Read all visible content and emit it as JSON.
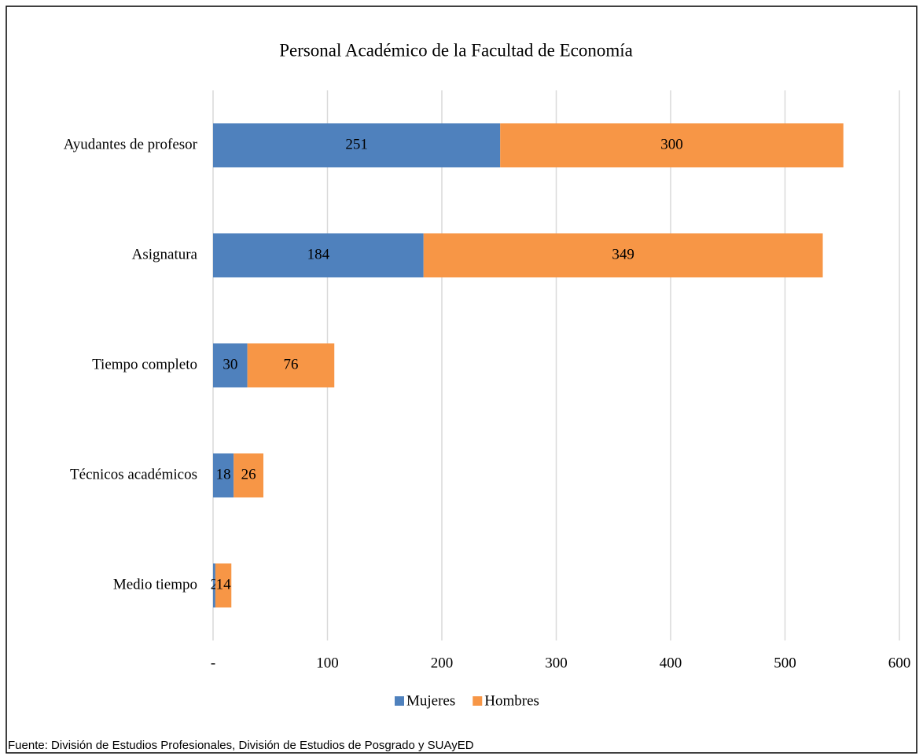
{
  "chart_data": {
    "type": "bar",
    "orientation": "horizontal",
    "stacked": true,
    "title": "Personal Académico de la Facultad de Economía",
    "categories": [
      "Ayudantes de profesor",
      "Asignatura",
      "Tiempo completo",
      "Técnicos académicos",
      "Medio tiempo"
    ],
    "series": [
      {
        "name": "Mujeres",
        "color": "#4f81bd",
        "values": [
          251,
          184,
          30,
          18,
          2
        ]
      },
      {
        "name": "Hombres",
        "color": "#f79646",
        "values": [
          300,
          349,
          76,
          26,
          14
        ]
      }
    ],
    "xlim": [
      0,
      600
    ],
    "xticks": [
      {
        "value": 0,
        "label": "-"
      },
      100,
      200,
      300,
      400,
      500,
      600
    ],
    "grid": true,
    "legend": "bottom",
    "source": "Fuente: División de Estudios Profesionales, División de Estudios de Posgrado y SUAyED"
  }
}
